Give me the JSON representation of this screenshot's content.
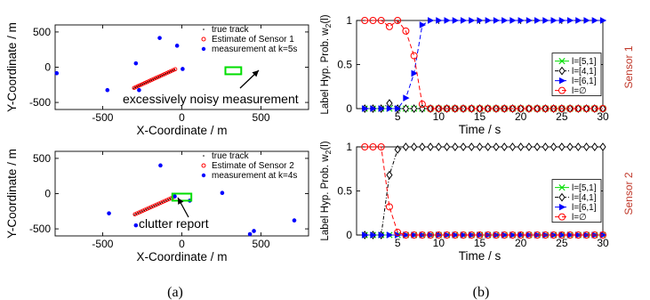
{
  "captions": [
    "(a)",
    "(b)"
  ],
  "colors": {
    "track": "#000000",
    "estimate": "#ff0000",
    "measurement": "#0000ff",
    "highlight": "#00dd00",
    "l51": "#00dd00",
    "l41": "#000000",
    "l61": "#0000ff",
    "lempty": "#ff0000",
    "sensor_label": "#c0392b"
  },
  "chart_data": [
    {
      "type": "scatter",
      "panel": "a-top",
      "xlabel": "X-Coordinate / m",
      "ylabel": "Y-Coordinate / m",
      "xlim": [
        -800,
        800
      ],
      "ylim": [
        -600,
        600
      ],
      "xticks": [
        -500,
        0,
        500
      ],
      "yticks": [
        -500,
        0,
        500
      ],
      "legend": [
        "true track",
        "Estimate of Sensor 1",
        "measurement at k=5s"
      ],
      "annotation": "excessively noisy measurement",
      "highlight_box": {
        "x": [
          275,
          375
        ],
        "y": [
          -100,
          0
        ]
      },
      "track": {
        "x_start": -305,
        "y_start": -300,
        "x_end": -45,
        "y_end": -35,
        "points": 24
      },
      "measurements": {
        "x": [
          -790,
          -470,
          -290,
          -140,
          -270,
          -30,
          5
        ],
        "y": [
          -85,
          -325,
          55,
          415,
          -325,
          305,
          -25
        ]
      }
    },
    {
      "type": "scatter",
      "panel": "a-bottom",
      "xlabel": "X-Coordinate / m",
      "ylabel": "Y-Coordinate / m",
      "xlim": [
        -800,
        800
      ],
      "ylim": [
        -600,
        600
      ],
      "xticks": [
        -500,
        0,
        500
      ],
      "yticks": [
        -500,
        0,
        500
      ],
      "legend": [
        "true track",
        "Estimate of Sensor 2",
        "measurement at k=4s"
      ],
      "annotation": "clutter report",
      "highlight_box": {
        "x": [
          -60,
          60
        ],
        "y": [
          -100,
          0
        ]
      },
      "track": {
        "x_start": -300,
        "y_start": -300,
        "x_end": -60,
        "y_end": -60,
        "points": 20
      },
      "measurements": {
        "x": [
          -460,
          -290,
          -135,
          -45,
          50,
          255,
          430,
          455,
          710
        ],
        "y": [
          -280,
          -450,
          400,
          -40,
          -100,
          10,
          -575,
          -530,
          -380
        ]
      }
    },
    {
      "type": "line",
      "panel": "b-top",
      "xlabel": "Time / s",
      "ylabel": "Label Hyp. Prob. w",
      "ylabel_sub": "2",
      "ylabel_tail": "(l)",
      "side_label": "Sensor 1",
      "xlim": [
        0,
        30
      ],
      "ylim": [
        0,
        1
      ],
      "xticks": [
        5,
        10,
        15,
        20,
        25,
        30
      ],
      "yticks": [
        0,
        0.5,
        1
      ],
      "series": [
        {
          "name": "l=[5,1]",
          "marker": "x",
          "x": [
            1,
            2,
            3,
            4,
            5,
            6,
            7,
            8,
            9,
            10,
            11,
            12,
            13,
            14,
            15,
            16,
            17,
            18,
            19,
            20,
            21,
            22,
            23,
            24,
            25,
            26,
            27,
            28,
            29,
            30
          ],
          "values": [
            0,
            0,
            0,
            0,
            0,
            0,
            0,
            0,
            0,
            0,
            0,
            0,
            0,
            0,
            0,
            0,
            0,
            0,
            0,
            0,
            0,
            0,
            0,
            0,
            0,
            0,
            0,
            0,
            0,
            0
          ]
        },
        {
          "name": "l=[4,1]",
          "marker": "diamond",
          "x": [
            1,
            2,
            3,
            4,
            5,
            6,
            7,
            8,
            9,
            10,
            11,
            12,
            13,
            14,
            15,
            16,
            17,
            18,
            19,
            20,
            21,
            22,
            23,
            24,
            25,
            26,
            27,
            28,
            29,
            30
          ],
          "values": [
            0,
            0,
            0,
            0.06,
            0,
            0,
            0,
            0,
            0,
            0,
            0,
            0,
            0,
            0,
            0,
            0,
            0,
            0,
            0,
            0,
            0,
            0,
            0,
            0,
            0,
            0,
            0,
            0,
            0,
            0
          ]
        },
        {
          "name": "l=[6,1]",
          "marker": "triangle-right",
          "x": [
            1,
            2,
            3,
            4,
            5,
            6,
            7,
            8,
            9,
            10,
            11,
            12,
            13,
            14,
            15,
            16,
            17,
            18,
            19,
            20,
            21,
            22,
            23,
            24,
            25,
            26,
            27,
            28,
            29,
            30
          ],
          "values": [
            0,
            0,
            0,
            0,
            0,
            0.12,
            0.4,
            0.95,
            1,
            1,
            1,
            1,
            1,
            1,
            1,
            1,
            1,
            1,
            1,
            1,
            1,
            1,
            1,
            1,
            1,
            1,
            1,
            1,
            1,
            1
          ]
        },
        {
          "name": "l=∅",
          "marker": "circle",
          "x": [
            1,
            2,
            3,
            4,
            5,
            6,
            7,
            8,
            9,
            10,
            11,
            12,
            13,
            14,
            15,
            16,
            17,
            18,
            19,
            20,
            21,
            22,
            23,
            24,
            25,
            26,
            27,
            28,
            29,
            30
          ],
          "values": [
            1,
            1,
            1,
            0.93,
            1,
            0.88,
            0.6,
            0.05,
            0,
            0,
            0,
            0,
            0,
            0,
            0,
            0,
            0,
            0,
            0,
            0,
            0,
            0,
            0,
            0,
            0,
            0,
            0,
            0,
            0,
            0
          ]
        }
      ]
    },
    {
      "type": "line",
      "panel": "b-bottom",
      "xlabel": "Time / s",
      "ylabel": "Label Hyp. Prob. w",
      "ylabel_sub": "2",
      "ylabel_tail": "(l)",
      "side_label": "Sensor 2",
      "xlim": [
        0,
        30
      ],
      "ylim": [
        0,
        1
      ],
      "xticks": [
        5,
        10,
        15,
        20,
        25,
        30
      ],
      "yticks": [
        0,
        0.5,
        1
      ],
      "series": [
        {
          "name": "l=[5,1]",
          "marker": "x",
          "x": [
            1,
            2,
            3,
            4,
            5,
            6,
            7,
            8,
            9,
            10,
            11,
            12,
            13,
            14,
            15,
            16,
            17,
            18,
            19,
            20,
            21,
            22,
            23,
            24,
            25,
            26,
            27,
            28,
            29,
            30
          ],
          "values": [
            0,
            0,
            0,
            0,
            0,
            0,
            0,
            0,
            0,
            0,
            0,
            0,
            0,
            0,
            0,
            0,
            0,
            0,
            0,
            0,
            0,
            0,
            0,
            0,
            0,
            0,
            0,
            0,
            0,
            0
          ]
        },
        {
          "name": "l=[4,1]",
          "marker": "diamond",
          "x": [
            1,
            2,
            3,
            4,
            5,
            6,
            7,
            8,
            9,
            10,
            11,
            12,
            13,
            14,
            15,
            16,
            17,
            18,
            19,
            20,
            21,
            22,
            23,
            24,
            25,
            26,
            27,
            28,
            29,
            30
          ],
          "values": [
            0,
            0,
            0,
            0.68,
            0.97,
            1,
            1,
            1,
            1,
            1,
            1,
            1,
            1,
            1,
            1,
            1,
            1,
            1,
            1,
            1,
            1,
            1,
            1,
            1,
            1,
            1,
            1,
            1,
            1,
            1
          ]
        },
        {
          "name": "l=[6,1]",
          "marker": "triangle-right",
          "x": [
            1,
            2,
            3,
            4,
            5,
            6,
            7,
            8,
            9,
            10,
            11,
            12,
            13,
            14,
            15,
            16,
            17,
            18,
            19,
            20,
            21,
            22,
            23,
            24,
            25,
            26,
            27,
            28,
            29,
            30
          ],
          "values": [
            0,
            0,
            0,
            0,
            0,
            0,
            0,
            0,
            0,
            0,
            0,
            0,
            0,
            0,
            0,
            0,
            0,
            0,
            0,
            0,
            0,
            0,
            0,
            0,
            0,
            0,
            0,
            0,
            0,
            0
          ]
        },
        {
          "name": "l=∅",
          "marker": "circle",
          "x": [
            1,
            2,
            3,
            4,
            5,
            6,
            7,
            8,
            9,
            10,
            11,
            12,
            13,
            14,
            15,
            16,
            17,
            18,
            19,
            20,
            21,
            22,
            23,
            24,
            25,
            26,
            27,
            28,
            29,
            30
          ],
          "values": [
            1,
            1,
            1,
            0.32,
            0.03,
            0,
            0,
            0,
            0,
            0,
            0,
            0,
            0,
            0,
            0,
            0,
            0,
            0,
            0,
            0,
            0,
            0,
            0,
            0,
            0,
            0,
            0,
            0,
            0,
            0
          ]
        }
      ]
    }
  ]
}
